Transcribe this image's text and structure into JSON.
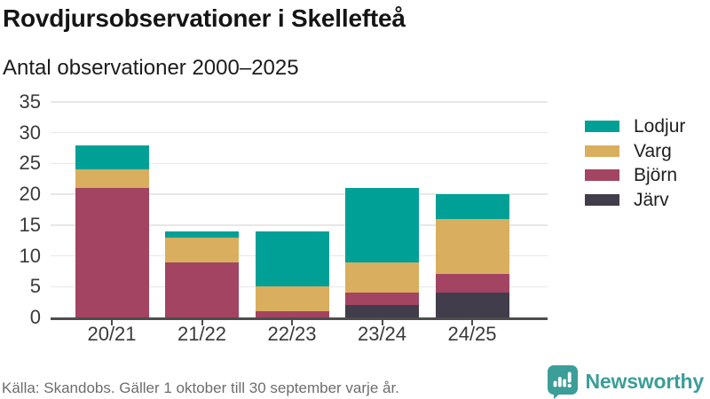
{
  "header": {
    "title": "Rovdjursobservationer i Skellefteå",
    "subtitle": "Antal observationer 2000–2025"
  },
  "chart_data": {
    "type": "bar",
    "stacked": true,
    "title": "Rovdjursobservationer i Skellefteå",
    "subtitle": "Antal observationer 2000–2025",
    "categories": [
      "20/21",
      "21/22",
      "22/23",
      "23/24",
      "24/25"
    ],
    "series": [
      {
        "name": "Lodjur",
        "color": "#00a096",
        "values": [
          4,
          1,
          9,
          12,
          4
        ]
      },
      {
        "name": "Varg",
        "color": "#d9ae5f",
        "values": [
          3,
          4,
          4,
          5,
          9
        ]
      },
      {
        "name": "Björn",
        "color": "#a34462",
        "values": [
          21,
          9,
          1,
          2,
          3
        ]
      },
      {
        "name": "Järv",
        "color": "#413d4b",
        "values": [
          0,
          0,
          0,
          2,
          4
        ]
      }
    ],
    "totals": [
      28,
      14,
      14,
      21,
      20
    ],
    "ylim": [
      0,
      35
    ],
    "yticks": [
      0,
      5,
      10,
      15,
      20,
      25,
      30,
      35
    ],
    "grid": true,
    "legend_position": "right",
    "xlabel": "",
    "ylabel": ""
  },
  "footer": {
    "source": "Källa: Skandobs. Gäller 1 oktober till 30 september varje år.",
    "brand": "Newsworthy",
    "brand_color": "#3b9e98",
    "brand_icon": "bar-chart-speech-bubble-icon"
  }
}
